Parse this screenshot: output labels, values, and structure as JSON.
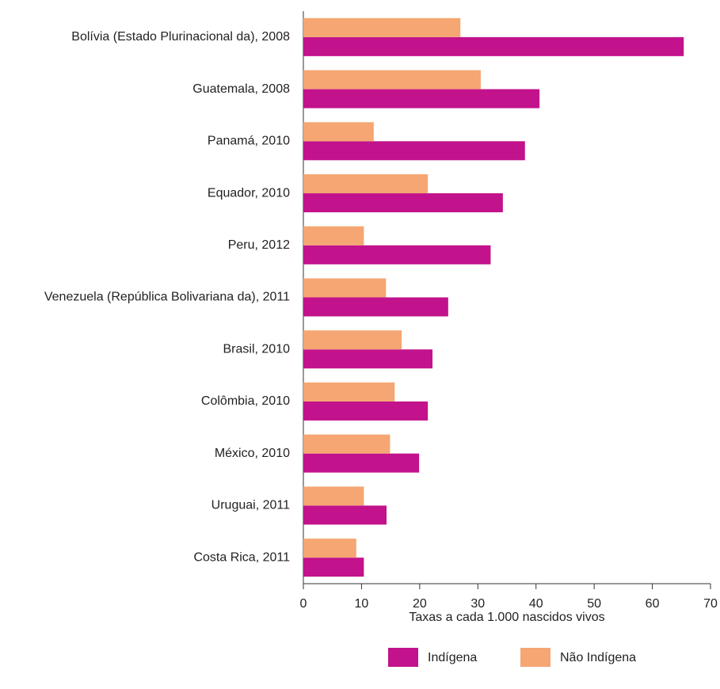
{
  "chart_data": {
    "type": "hbar",
    "categories": [
      "Bolívia (Estado Plurinacional da), 2008",
      "Guatemala, 2008",
      "Panamá, 2010",
      "Equador, 2010",
      "Peru, 2012",
      "Venezuela (República Bolivariana da), 2011",
      "Brasil, 2010",
      "Colômbia, 2010",
      "México, 2010",
      "Uruguai, 2011",
      "Costa Rica, 2011"
    ],
    "series": [
      {
        "name": "Indígena",
        "color": "#c2128c",
        "values": [
          65.4,
          40.6,
          38.1,
          34.3,
          32.2,
          24.9,
          22.2,
          21.4,
          19.9,
          14.3,
          10.4
        ]
      },
      {
        "name": "Não Indígena",
        "color": "#f5a672",
        "values": [
          27.0,
          30.5,
          12.1,
          21.4,
          10.4,
          14.2,
          16.9,
          15.7,
          14.9,
          10.4,
          9.1
        ]
      }
    ],
    "x_label": "Taxas a cada 1.000 nascidos vivos",
    "xlim": [
      0,
      70
    ],
    "xticks": [
      0,
      10,
      20,
      30,
      40,
      50,
      60,
      70
    ],
    "legend": "bottom"
  }
}
